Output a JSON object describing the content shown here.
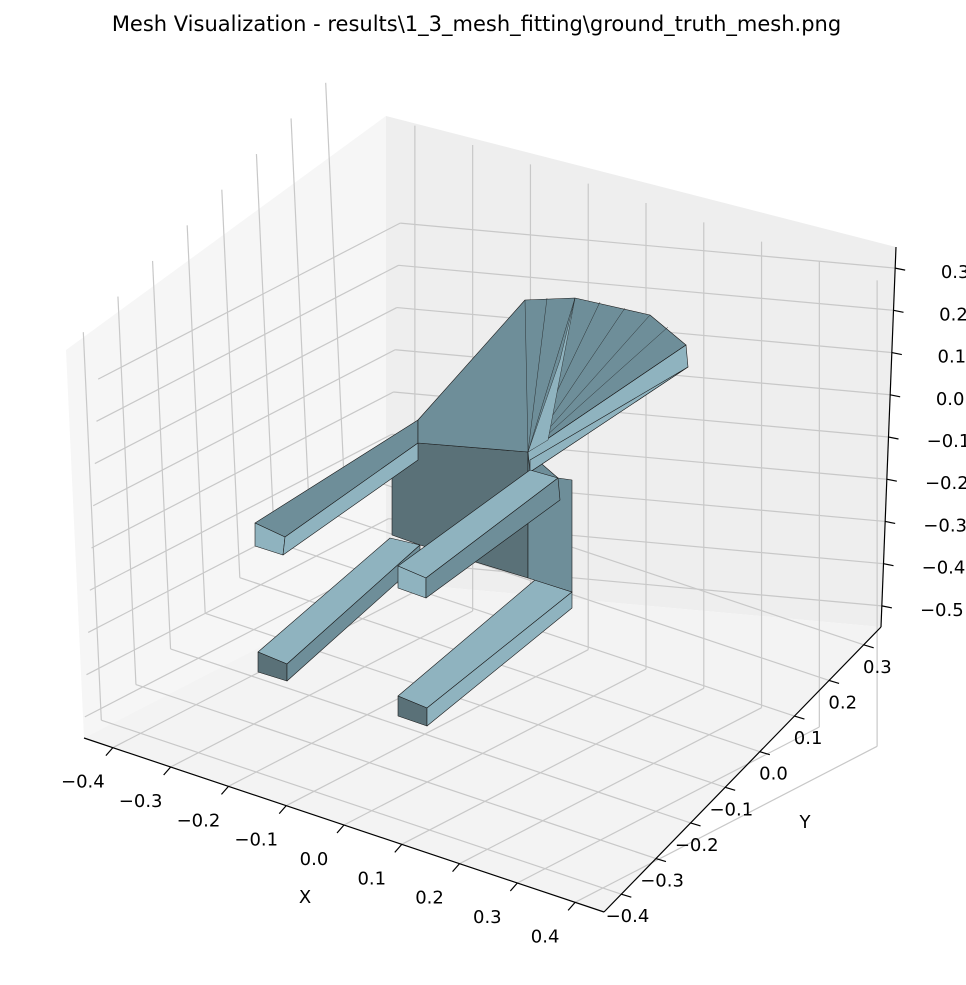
{
  "title": "Mesh Visualization - results\\1_3_mesh_fitting\\ground_truth_mesh.png",
  "chart_data": {
    "type": "3d-mesh",
    "title": "Mesh Visualization - results\\1_3_mesh_fitting\\ground_truth_mesh.png",
    "xlabel": "X",
    "ylabel": "Y",
    "zlabel": "",
    "x_ticks": [
      "−0.4",
      "−0.3",
      "−0.2",
      "−0.1",
      "0.0",
      "0.1",
      "0.2",
      "0.3",
      "0.4"
    ],
    "y_ticks": [
      "−0.4",
      "−0.3",
      "−0.2",
      "−0.1",
      "0.0",
      "0.1",
      "0.2",
      "0.3"
    ],
    "z_ticks": [
      "−0.5",
      "−0.4",
      "−0.3",
      "−0.2",
      "−0.1",
      "0.0",
      "0.1",
      "0.2",
      "0.3"
    ],
    "xlim": [
      -0.45,
      0.45
    ],
    "ylim": [
      -0.45,
      0.35
    ],
    "zlim": [
      -0.55,
      0.35
    ],
    "grid": true,
    "pane_color": "#f2f2f2",
    "mesh_colors": {
      "light": "#8fb3bf",
      "mid": "#6e8e99",
      "dark": "#5a7178",
      "edge": "#1a1a1a"
    }
  }
}
